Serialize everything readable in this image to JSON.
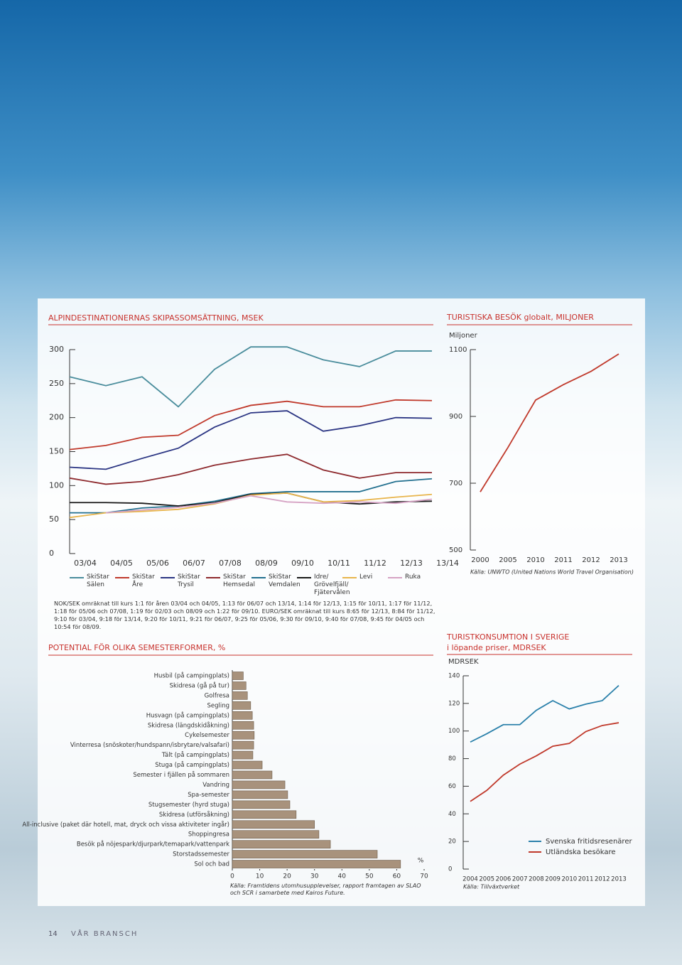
{
  "page": {
    "number": "14",
    "section": "VÅR BRANSCH"
  },
  "chart_data": [
    {
      "type": "line",
      "title": "ALPINDESTINATIONERNAS SKIPASSOMSÄTTNING, MSEK",
      "categories": [
        "03/04",
        "04/05",
        "05/06",
        "06/07",
        "07/08",
        "08/09",
        "09/10",
        "10/11",
        "11/12",
        "12/13",
        "13/14"
      ],
      "ylim": [
        0,
        300
      ],
      "yticks": [
        0,
        50,
        100,
        150,
        200,
        250,
        300
      ],
      "series": [
        {
          "name": "SkiStar Sälen",
          "color": "#4a8d9c",
          "values": [
            260,
            247,
            260,
            216,
            271,
            304,
            304,
            285,
            275,
            298,
            298
          ]
        },
        {
          "name": "SkiStar Åre",
          "color": "#c0392b",
          "values": [
            153,
            159,
            171,
            174,
            203,
            218,
            224,
            216,
            216,
            226,
            225
          ]
        },
        {
          "name": "SkiStar Trysil",
          "color": "#2b3583",
          "values": [
            127,
            124,
            140,
            155,
            186,
            207,
            210,
            180,
            188,
            200,
            199
          ]
        },
        {
          "name": "SkiStar Hemsedal",
          "color": "#8e2a2e",
          "values": [
            111,
            102,
            106,
            116,
            130,
            139,
            146,
            123,
            111,
            119,
            119
          ]
        },
        {
          "name": "SkiStar Vemdalen",
          "color": "#23708f",
          "values": [
            60,
            60,
            67,
            70,
            77,
            88,
            91,
            91,
            91,
            106,
            110
          ]
        },
        {
          "name": "Idre/ Grövelfjäll/ Fjätervålen",
          "color": "#1a1a1a",
          "values": [
            75,
            75,
            74,
            70,
            75,
            87,
            89,
            76,
            73,
            76,
            77
          ]
        },
        {
          "name": "Levi",
          "color": "#e8b54c",
          "values": [
            53,
            60,
            62,
            65,
            73,
            86,
            89,
            76,
            78,
            83,
            87
          ]
        },
        {
          "name": "Ruka",
          "color": "#d6a3c4",
          "values": [
            null,
            60,
            64,
            68,
            74,
            85,
            76,
            74,
            76,
            74,
            80
          ]
        }
      ],
      "note": "NOK/SEK omräknat till kurs 1:1 för åren 03/04 och 04/05, 1:13 för 06/07 och 13/14, 1:14 för 12/13, 1:15 för 10/11, 1:17 för 11/12, 1:18 för 05/06 och 07/08, 1:19 för 02/03 och 08/09 och 1:22 för 09/10. EURO/SEK omräknat till kurs 8:65 för 12/13, 8:84 för 11/12, 9:10 för 03/04, 9:18 för 13/14, 9:20 för 10/11, 9:21 för 06/07, 9:25 för 05/06, 9:30 för 09/10, 9:40 för 07/08, 9:45 för 04/05 och 10:54 för 08/09."
    },
    {
      "type": "line",
      "title": "TURISTISKA BESÖK globalt, MILJONER",
      "y_label": "Miljoner",
      "categories": [
        "2000",
        "2005",
        "2010",
        "2011",
        "2012",
        "2013"
      ],
      "ylim": [
        500,
        1100
      ],
      "yticks": [
        500,
        700,
        900,
        1100
      ],
      "series": [
        {
          "name": null,
          "color": "#c0392b",
          "values": [
            674,
            807,
            949,
            995,
            1035,
            1087
          ]
        }
      ],
      "source": "Källa: UNWTO (United Nations World Travel Organisation)"
    },
    {
      "type": "hbar",
      "title": "POTENTIAL FÖR OLIKA SEMESTERFORMER, %",
      "x_label": "%",
      "color": "#a8927c",
      "categories": [
        "Husbil (på campingplats)",
        "Skidresa (gå på tur)",
        "Golfresa",
        "Segling",
        "Husvagn (på campingplats)",
        "Skidresa (längdskidåkning)",
        "Cykelsemester",
        "Vinterresa (snöskoter/hundspann/isbrytare/valsafari)",
        "Tält (på campingplats)",
        "Stuga (på campingplats)",
        "Semester i fjällen på sommaren",
        "Vandring",
        "Spa-semester",
        "Stugsemester (hyrd stuga)",
        "Skidresa (utförsåkning)",
        "All-inclusive (paket där hotell, mat, dryck och vissa aktiviteter ingår)",
        "Shoppingresa",
        "Besök på nöjespark/djurpark/temapark/vattenpark",
        "Storstadssemester",
        "Sol och bad"
      ],
      "values": [
        4,
        5,
        5.5,
        6.7,
        7.3,
        7.8,
        8,
        7.8,
        7.5,
        10.9,
        14.5,
        19.2,
        20.2,
        21,
        23.3,
        30,
        31.6,
        35.8,
        52.9,
        61.4
      ],
      "xlim": [
        0,
        70
      ],
      "xticks": [
        0,
        10,
        20,
        30,
        40,
        50,
        60,
        70
      ],
      "source": "Källa: Framtidens utomhusupplevelser, rapport framtagen av SLAO och SCR i samarbete med Kairos Future."
    },
    {
      "type": "line",
      "title": "TURISTKONSUMTION I SVERIGE",
      "subtitle": "i löpande priser, MDRSEK",
      "y_label": "MDRSEK",
      "categories": [
        "2004",
        "2005",
        "2006",
        "2007",
        "2008",
        "2009",
        "2010",
        "2011",
        "2012",
        "2013"
      ],
      "ylim": [
        0,
        140
      ],
      "yticks": [
        0,
        20,
        40,
        60,
        80,
        100,
        120,
        140
      ],
      "series": [
        {
          "name": "Svenska fritidsresenärer",
          "color": "#2a80aa",
          "values": [
            92,
            98,
            104.6,
            104.6,
            115,
            122,
            116,
            119.5,
            122,
            133
          ]
        },
        {
          "name": "Utländska besökare",
          "color": "#c0392b",
          "values": [
            49,
            57,
            68,
            76,
            82,
            89,
            91,
            99.6,
            104,
            106
          ]
        }
      ],
      "source": "Källa: Tillväxtverket"
    }
  ]
}
